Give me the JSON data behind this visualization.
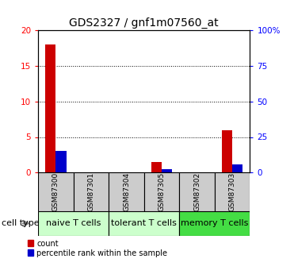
{
  "title": "GDS2327 / gnf1m07560_at",
  "samples": [
    "GSM87300",
    "GSM87301",
    "GSM87304",
    "GSM87305",
    "GSM87302",
    "GSM87303"
  ],
  "count_values": [
    18.0,
    0.0,
    0.0,
    1.5,
    0.0,
    6.0
  ],
  "percentile_values": [
    15.0,
    0.0,
    0.0,
    2.5,
    0.0,
    6.0
  ],
  "ylim_left": [
    0,
    20
  ],
  "ylim_right": [
    0,
    100
  ],
  "yticks_left": [
    0,
    5,
    10,
    15,
    20
  ],
  "yticks_right": [
    0,
    25,
    50,
    75,
    100
  ],
  "ytick_labels_left": [
    "0",
    "5",
    "10",
    "15",
    "20"
  ],
  "ytick_labels_right": [
    "0",
    "25",
    "50",
    "75",
    "100%"
  ],
  "cell_groups": [
    {
      "label": "naive T cells",
      "start": 0,
      "end": 2,
      "color": "#ccffcc"
    },
    {
      "label": "tolerant T cells",
      "start": 2,
      "end": 4,
      "color": "#ccffcc"
    },
    {
      "label": "memory T cells",
      "start": 4,
      "end": 6,
      "color": "#44dd44"
    }
  ],
  "bar_width": 0.3,
  "count_color": "#cc0000",
  "percentile_color": "#0000cc",
  "sample_box_color": "#cccccc",
  "cell_type_label": "cell type",
  "legend_count": "count",
  "legend_percentile": "percentile rank within the sample",
  "title_fontsize": 10,
  "tick_fontsize": 7.5,
  "sample_fontsize": 6.5,
  "group_label_fontsize": 8,
  "legend_fontsize": 7
}
